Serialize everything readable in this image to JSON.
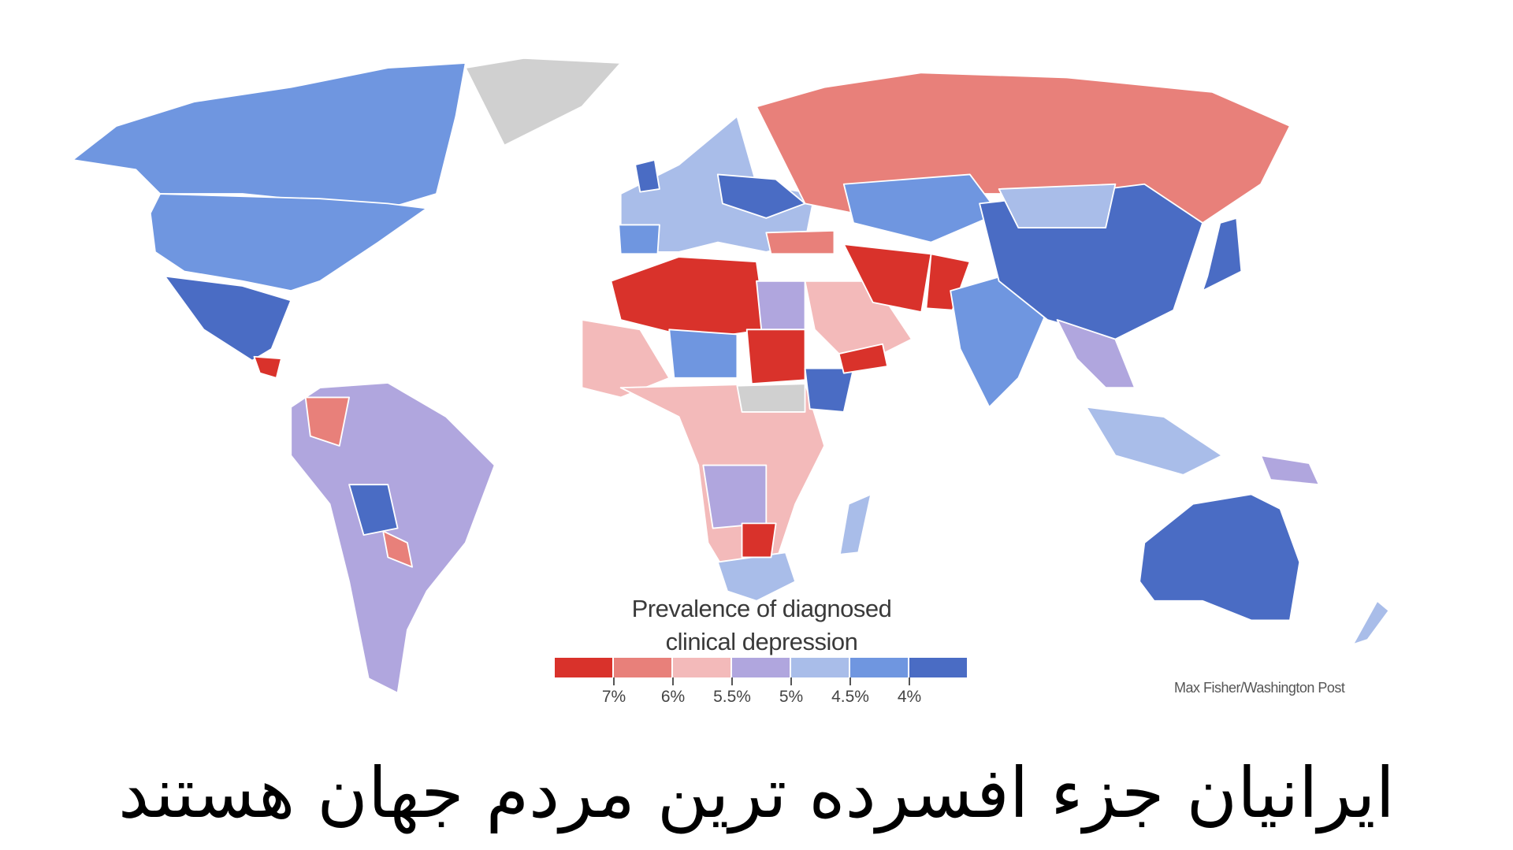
{
  "legend": {
    "title_line1": "Prevalence of diagnosed",
    "title_line2": "clinical depression",
    "colors": [
      "#d9322b",
      "#e8807a",
      "#f3baba",
      "#b0a6de",
      "#a9bde9",
      "#6f96e0",
      "#4a6cc4"
    ],
    "tick_labels": [
      "7%",
      "6%",
      "5.5%",
      "5%",
      "4.5%",
      "4%"
    ]
  },
  "credit": "Max Fisher/Washington Post",
  "headline": "ایرانیان جزء افسرده ترین مردم جهان هستند",
  "no_data_color": "#d0d0d0"
}
